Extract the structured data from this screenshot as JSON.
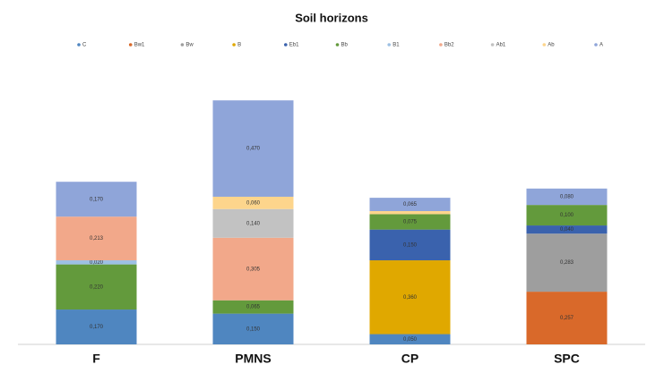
{
  "chart_data": {
    "type": "stacked_bar",
    "title": "Soil horizons",
    "categories": [
      "F",
      "PMNS",
      "CP",
      "SPC"
    ],
    "ylim": [
      0,
      1.3
    ],
    "series": [
      {
        "name": "C",
        "color": "#4f86c0",
        "values": [
          0.17,
          0.15,
          0.05,
          null
        ],
        "value_labels": [
          "0,170",
          "0,150",
          "0,050",
          null
        ]
      },
      {
        "name": "Bw1",
        "color": "#d9692a",
        "values": [
          null,
          null,
          null,
          0.257
        ],
        "value_labels": [
          null,
          null,
          null,
          "0,257"
        ]
      },
      {
        "name": "Bw",
        "color": "#9e9e9e",
        "values": [
          null,
          null,
          null,
          0.283
        ],
        "value_labels": [
          null,
          null,
          null,
          "0,283"
        ]
      },
      {
        "name": "B",
        "color": "#e0a800",
        "values": [
          null,
          null,
          0.36,
          null
        ],
        "value_labels": [
          null,
          null,
          "0,360",
          null
        ]
      },
      {
        "name": "Eb1",
        "color": "#3a62ad",
        "values": [
          null,
          null,
          0.15,
          0.04
        ],
        "value_labels": [
          null,
          null,
          "0,150",
          "0,040"
        ]
      },
      {
        "name": "Bb",
        "color": "#639a3c",
        "values": [
          0.22,
          0.065,
          0.075,
          0.1
        ],
        "value_labels": [
          "0,220",
          "0,065",
          "0,075",
          "0,100"
        ]
      },
      {
        "name": "B1",
        "color": "#9dc0e3",
        "values": [
          0.02,
          null,
          null,
          null
        ],
        "value_labels": [
          "0,020",
          null,
          null,
          null
        ]
      },
      {
        "name": "Bb2",
        "color": "#f2a88a",
        "values": [
          0.213,
          0.305,
          null,
          null
        ],
        "value_labels": [
          "0,213",
          "0,305",
          null,
          null
        ]
      },
      {
        "name": "Ab1",
        "color": "#c2c2c2",
        "values": [
          null,
          0.14,
          null,
          null
        ],
        "value_labels": [
          null,
          "0,140",
          null,
          null
        ]
      },
      {
        "name": "Ab",
        "color": "#fdd58c",
        "values": [
          null,
          0.06,
          0.015,
          null
        ],
        "value_labels": [
          null,
          "0,060",
          null,
          null
        ]
      },
      {
        "name": "A",
        "color": "#8fa5d9",
        "values": [
          0.17,
          0.47,
          0.065,
          0.08
        ],
        "value_labels": [
          "0,170",
          "0,470",
          "0,065",
          "0,080"
        ]
      }
    ]
  }
}
